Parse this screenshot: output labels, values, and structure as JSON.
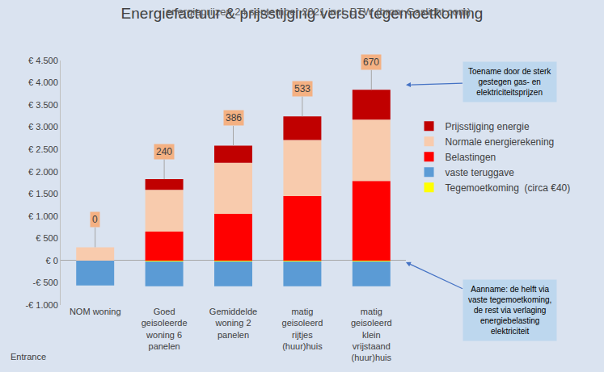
{
  "chart_data": {
    "type": "bar",
    "title": "Energiefactuur & prijsstijging versus tegemoetkoming",
    "subtitle": "energieprijzen 24 september 2021 incl. BTW (bron: Gaslicht.com)",
    "source": "Entrance",
    "categories": [
      "NOM woning",
      "Goed geisoleerde woning 6 panelen",
      "Gemiddelde woning 2 panelen",
      "matig geisoleerd rijtjes (huur)huis",
      "matig geisoleerd klein vrijstaand (huur)huis"
    ],
    "series": [
      {
        "name": "Tegemoetkoming  (circa €40)",
        "color": "#ffff00",
        "values": [
          0,
          -20,
          -20,
          -20,
          -20
        ]
      },
      {
        "name": "vaste teruggave",
        "color": "#5b9bd5",
        "values": [
          -560,
          -560,
          -560,
          -560,
          -560
        ]
      },
      {
        "name": "Belastingen",
        "color": "#ff0000",
        "values": [
          0,
          650,
          1050,
          1450,
          1790
        ]
      },
      {
        "name": "Normale energierekening",
        "color": "#f8cbad",
        "values": [
          300,
          940,
          1150,
          1260,
          1380
        ]
      },
      {
        "name": "Prijsstijging energie",
        "color": "#c00000",
        "values": [
          0,
          240,
          386,
          533,
          670
        ],
        "data_labels": true
      }
    ],
    "ylim": [
      -1000,
      4500
    ],
    "yticks": [
      {
        "value": -1000,
        "label": "-€ 1.000"
      },
      {
        "value": -500,
        "label": "-€ 500"
      },
      {
        "value": 0,
        "label": "€ 0"
      },
      {
        "value": 500,
        "label": "€ 500"
      },
      {
        "value": 1000,
        "label": "€ 1.000"
      },
      {
        "value": 1500,
        "label": "€ 1.500"
      },
      {
        "value": 2000,
        "label": "€ 2.000"
      },
      {
        "value": 2500,
        "label": "€ 2.500"
      },
      {
        "value": 3000,
        "label": "€ 3.000"
      },
      {
        "value": 3500,
        "label": "€ 3.500"
      },
      {
        "value": 4000,
        "label": "€ 4.000"
      },
      {
        "value": 4500,
        "label": "€ 4.500"
      }
    ],
    "stacked": true,
    "grid": false,
    "legend": "right",
    "annotations": [
      {
        "text": [
          "Toename door de sterk",
          "gestegen gas- en",
          "elektriciteitsprijzen"
        ]
      },
      {
        "text": [
          "Aanname: de helft via",
          "vaste tegemoetkoming,",
          "de rest via verlaging",
          "energiebelasting",
          "elektriciteit"
        ]
      }
    ]
  }
}
